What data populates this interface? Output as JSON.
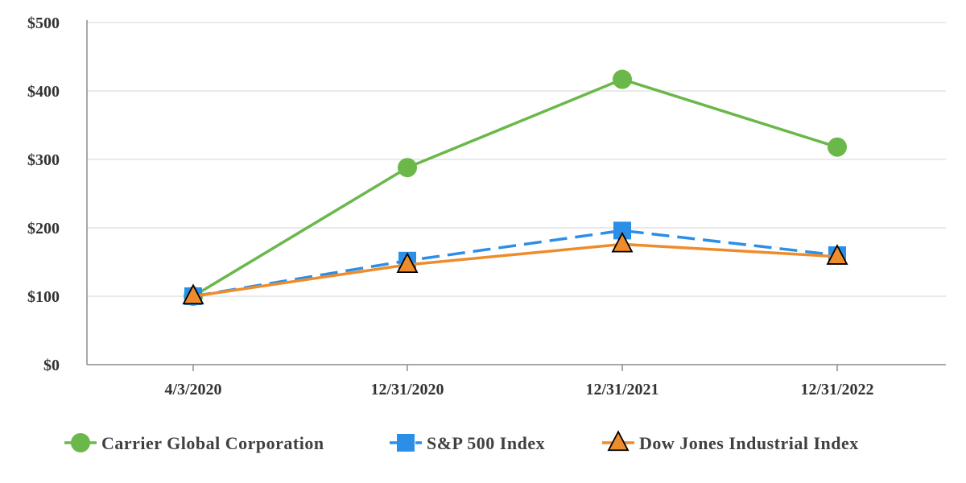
{
  "chart_data": {
    "type": "line",
    "title": "",
    "xlabel": "",
    "ylabel": "",
    "categories": [
      "4/3/2020",
      "12/31/2020",
      "12/31/2021",
      "12/31/2022"
    ],
    "ylim": [
      0,
      500
    ],
    "yticks": [
      0,
      100,
      200,
      300,
      400,
      500
    ],
    "ytick_labels": [
      "$0",
      "$100",
      "$200",
      "$300",
      "$400",
      "$500"
    ],
    "grid": true,
    "legend_position": "bottom",
    "series": [
      {
        "name": "Carrier Global Corporation",
        "values": [
          100,
          288,
          417,
          318
        ],
        "color": "#6ab84a",
        "marker": "circle",
        "line_style": "solid"
      },
      {
        "name": "S&P 500 Index",
        "values": [
          100,
          152,
          196,
          160
        ],
        "color": "#2b8fe8",
        "marker": "square",
        "line_style": "dashed"
      },
      {
        "name": "Dow Jones Industrial Index",
        "values": [
          100,
          146,
          176,
          158
        ],
        "color": "#ee8c2c",
        "marker": "triangle",
        "line_style": "solid"
      }
    ]
  }
}
